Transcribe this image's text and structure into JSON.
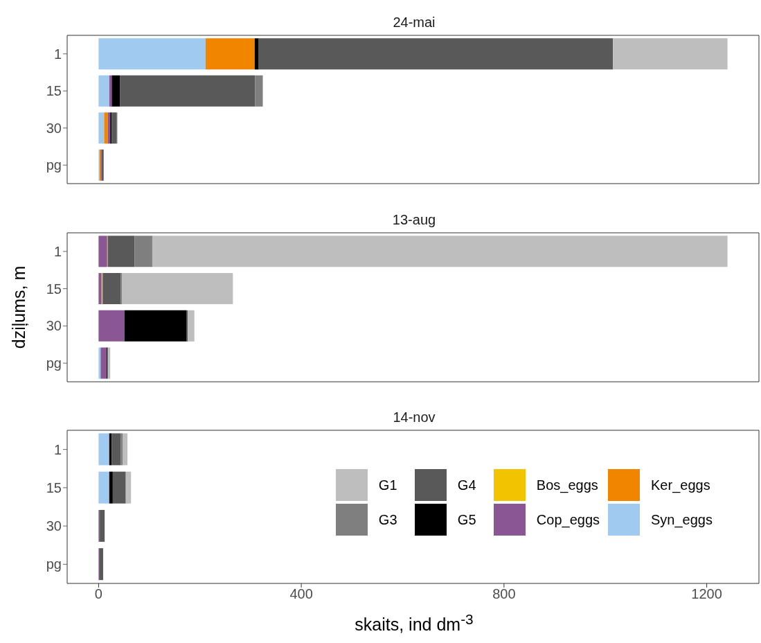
{
  "chart_data": [
    {
      "type": "bar",
      "orientation": "horizontal",
      "stacked": true,
      "title": "24-mai",
      "categories": [
        "1",
        "15",
        "30",
        "pg"
      ],
      "xlim": [
        -62,
        1303
      ],
      "xticks": [
        0,
        400,
        800,
        1200
      ],
      "tick_labels": "y",
      "series": [
        {
          "color": "#a1caf1",
          "values": [
            211,
            21,
            11,
            2
          ]
        },
        {
          "color": "#f28500",
          "values": [
            97,
            null,
            7,
            2
          ]
        },
        {
          "color": "#8a5694",
          "values": [
            null,
            5,
            5,
            2
          ]
        },
        {
          "color": "#000000",
          "values": [
            8,
            16,
            3,
            null
          ]
        },
        {
          "color": "#595959",
          "values": [
            699,
            267,
            9,
            4
          ]
        },
        {
          "color": "#7f7f7f",
          "values": [
            null,
            15,
            2,
            null
          ]
        },
        {
          "color": "#bebebe",
          "values": [
            226,
            null,
            null,
            null
          ]
        }
      ]
    },
    {
      "type": "bar",
      "orientation": "horizontal",
      "stacked": true,
      "title": "13-aug",
      "ylabel": "dziļums, m",
      "categories": [
        "1",
        "15",
        "30",
        "pg"
      ],
      "xlim": [
        -62,
        1303
      ],
      "xticks": [
        0,
        400,
        800,
        1200
      ],
      "tick_labels": "y",
      "series": [
        {
          "color": "#a1caf1",
          "values": [
            null,
            null,
            null,
            4
          ]
        },
        {
          "color": "#8a5694",
          "values": [
            17,
            6,
            51,
            12
          ]
        },
        {
          "color": "#f2c300",
          "values": [
            1,
            2,
            null,
            null
          ]
        },
        {
          "color": "#000000",
          "values": [
            null,
            null,
            122,
            2
          ]
        },
        {
          "color": "#595959",
          "values": [
            53,
            36,
            3,
            null
          ]
        },
        {
          "color": "#7f7f7f",
          "values": [
            35,
            2,
            null,
            null
          ]
        },
        {
          "color": "#bebebe",
          "values": [
            1135,
            219,
            13,
            5
          ]
        }
      ]
    },
    {
      "type": "bar",
      "orientation": "horizontal",
      "stacked": true,
      "title": "14-nov",
      "xlabel": "skaits, ind dm$^{-3}$",
      "categories": [
        "1",
        "15",
        "30",
        "pg"
      ],
      "xlim": [
        -62,
        1303
      ],
      "xticks": [
        0,
        400,
        800,
        1200
      ],
      "legend": "right",
      "series": [
        {
          "name": "Syn_eggs",
          "color": "#a1caf1",
          "values": [
            21,
            21,
            null,
            null
          ]
        },
        {
          "name": "Ker_eggs",
          "color": "#f28500",
          "values": [
            null,
            null,
            null,
            null
          ]
        },
        {
          "name": "Cop_eggs",
          "color": "#8a5694",
          "values": [
            null,
            null,
            2,
            1
          ]
        },
        {
          "name": "Bos_eggs",
          "color": "#f2c300",
          "values": [
            null,
            null,
            null,
            null
          ]
        },
        {
          "name": "G5",
          "color": "#000000",
          "values": [
            5,
            7,
            1,
            null
          ]
        },
        {
          "name": "G4",
          "color": "#595959",
          "values": [
            18,
            25,
            9,
            8
          ]
        },
        {
          "name": "G3",
          "color": "#7f7f7f",
          "values": [
            4,
            1,
            null,
            null
          ]
        },
        {
          "name": "G1",
          "color": "#bebebe",
          "values": [
            9,
            10,
            null,
            null
          ]
        }
      ]
    }
  ]
}
